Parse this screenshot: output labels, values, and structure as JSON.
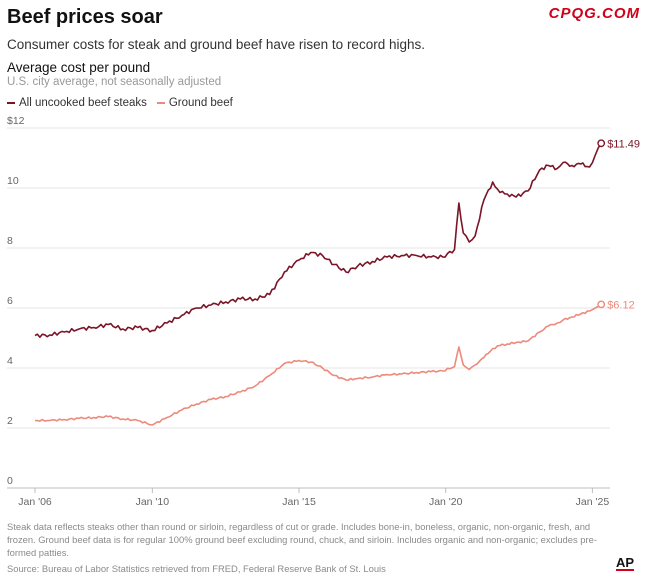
{
  "header": {
    "title": "Beef prices soar",
    "watermark": "CPQG.COM",
    "subtitle": "Consumer costs for steak and ground beef have risen to record highs."
  },
  "legend": {
    "steaks": "All uncooked beef steaks",
    "ground": "Ground beef"
  },
  "footer": {
    "note": "Steak data reflects steaks other than round or sirloin, regardless of cut or grade. Includes bone-in, boneless, organic, non-organic, fresh, and frozen. Ground beef data is for regular 100% ground beef excluding round, chuck, and sirloin. Includes organic and non-organic; excludes pre-formed patties.",
    "source": "Source: Bureau of Labor Statistics retrieved from FRED, Federal Reserve Bank of St. Louis",
    "logo": "AP"
  },
  "chart_data": {
    "type": "line",
    "title": "Average cost per pound",
    "subtitle": "U.S. city average, not seasonally adjusted",
    "xlabel": "",
    "ylabel": "",
    "xlim": [
      2006,
      2025.6
    ],
    "ylim": [
      0,
      12
    ],
    "y_ticks": [
      0,
      2,
      4,
      6,
      8,
      10,
      12
    ],
    "y_tick_labels": [
      "0",
      "2",
      "4",
      "6",
      "8",
      "10",
      "$12"
    ],
    "x_ticks": [
      2006,
      2010,
      2015,
      2020,
      2025
    ],
    "x_tick_labels": [
      "Jan '06",
      "Jan '10",
      "Jan '15",
      "Jan '20",
      "Jan '25"
    ],
    "grid": true,
    "colors": {
      "steaks": "#7b1427",
      "ground": "#ec8a7b",
      "grid": "#e5e5e5"
    },
    "series": [
      {
        "name": "All uncooked beef steaks",
        "key": "steaks",
        "end_label": "$11.49",
        "x": [
          2006.0,
          2006.5,
          2007.0,
          2007.5,
          2008.0,
          2008.5,
          2009.0,
          2009.5,
          2010.0,
          2010.5,
          2011.0,
          2011.5,
          2012.0,
          2012.5,
          2013.0,
          2013.5,
          2014.0,
          2014.5,
          2015.0,
          2015.4,
          2015.8,
          2016.2,
          2016.6,
          2017.0,
          2017.5,
          2018.0,
          2018.5,
          2019.0,
          2019.5,
          2019.9,
          2020.3,
          2020.45,
          2020.6,
          2020.8,
          2021.0,
          2021.3,
          2021.6,
          2021.85,
          2022.1,
          2022.4,
          2022.8,
          2023.2,
          2023.5,
          2023.8,
          2024.0,
          2024.3,
          2024.6,
          2024.9,
          2025.1,
          2025.3
        ],
        "y": [
          5.08,
          5.1,
          5.2,
          5.3,
          5.35,
          5.45,
          5.3,
          5.35,
          5.25,
          5.5,
          5.75,
          6.0,
          6.1,
          6.2,
          6.3,
          6.3,
          6.45,
          7.2,
          7.6,
          7.85,
          7.75,
          7.45,
          7.2,
          7.4,
          7.55,
          7.7,
          7.75,
          7.75,
          7.7,
          7.7,
          7.95,
          9.5,
          8.5,
          8.2,
          8.4,
          9.6,
          10.2,
          9.85,
          9.8,
          9.7,
          9.9,
          10.6,
          10.75,
          10.65,
          10.85,
          10.75,
          10.8,
          10.7,
          11.1,
          11.49
        ]
      },
      {
        "name": "Ground beef",
        "key": "ground",
        "end_label": "$6.12",
        "x": [
          2006.0,
          2006.5,
          2007.0,
          2007.5,
          2008.0,
          2008.5,
          2009.0,
          2009.5,
          2010.0,
          2010.5,
          2011.0,
          2011.5,
          2012.0,
          2012.5,
          2013.0,
          2013.5,
          2014.0,
          2014.5,
          2015.0,
          2015.4,
          2015.8,
          2016.2,
          2016.6,
          2017.0,
          2017.5,
          2018.0,
          2018.5,
          2019.0,
          2019.5,
          2019.9,
          2020.3,
          2020.45,
          2020.6,
          2020.8,
          2021.0,
          2021.3,
          2021.6,
          2021.85,
          2022.1,
          2022.4,
          2022.8,
          2023.2,
          2023.5,
          2023.8,
          2024.0,
          2024.3,
          2024.6,
          2024.9,
          2025.1,
          2025.3
        ],
        "y": [
          2.25,
          2.25,
          2.28,
          2.32,
          2.35,
          2.38,
          2.3,
          2.25,
          2.1,
          2.35,
          2.6,
          2.8,
          2.95,
          3.05,
          3.2,
          3.4,
          3.75,
          4.15,
          4.25,
          4.2,
          4.0,
          3.75,
          3.6,
          3.65,
          3.7,
          3.78,
          3.8,
          3.85,
          3.88,
          3.9,
          4.05,
          4.7,
          4.1,
          3.95,
          4.1,
          4.35,
          4.65,
          4.75,
          4.8,
          4.85,
          4.9,
          5.2,
          5.4,
          5.5,
          5.6,
          5.7,
          5.8,
          5.9,
          6.0,
          6.12
        ]
      }
    ]
  }
}
